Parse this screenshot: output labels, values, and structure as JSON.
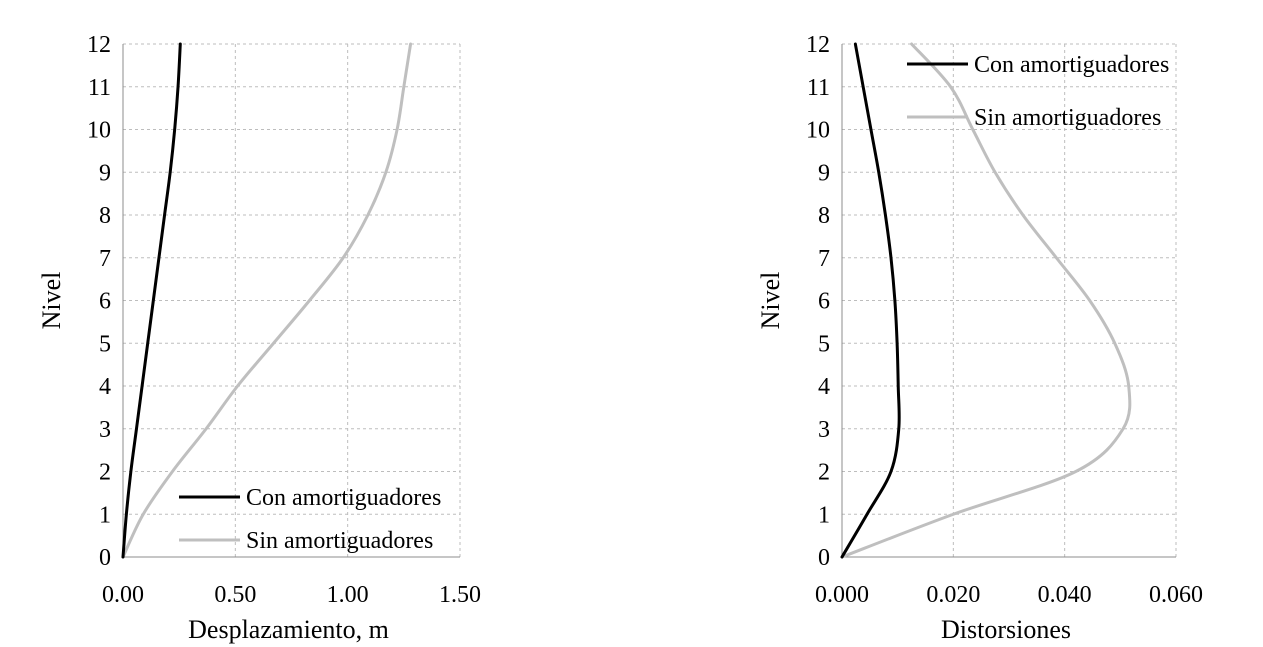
{
  "chart_data": [
    {
      "type": "line",
      "title": "",
      "xlabel": "Desplazamiento, m",
      "ylabel": "Nivel",
      "xlim": [
        0,
        1.5
      ],
      "ylim": [
        0,
        12
      ],
      "x_ticks": [
        "0.00",
        "0.50",
        "1.00",
        "1.50"
      ],
      "y_ticks": [
        "0",
        "1",
        "2",
        "3",
        "4",
        "5",
        "6",
        "7",
        "8",
        "9",
        "10",
        "11",
        "12"
      ],
      "grid": true,
      "legend_position": "bottom-right",
      "series": [
        {
          "name": "Con amortiguadores",
          "color": "#000000",
          "x": [
            0.0,
            0.015,
            0.035,
            0.06,
            0.085,
            0.11,
            0.135,
            0.16,
            0.185,
            0.21,
            0.23,
            0.245,
            0.255
          ],
          "y": [
            0,
            1,
            2,
            3,
            4,
            5,
            6,
            7,
            8,
            9,
            10,
            11,
            12
          ]
        },
        {
          "name": "Sin amortiguadores",
          "color": "#bfbfbf",
          "x": [
            0.0,
            0.09,
            0.22,
            0.37,
            0.51,
            0.67,
            0.83,
            0.98,
            1.09,
            1.17,
            1.22,
            1.25,
            1.28
          ],
          "y": [
            0,
            1,
            2,
            3,
            4,
            5,
            6,
            7,
            8,
            9,
            10,
            11,
            12
          ]
        }
      ]
    },
    {
      "type": "line",
      "title": "",
      "xlabel": "Distorsiones",
      "ylabel": "Nivel",
      "xlim": [
        0,
        0.06
      ],
      "ylim": [
        0,
        12
      ],
      "x_ticks": [
        "0.000",
        "0.020",
        "0.040",
        "0.060"
      ],
      "y_ticks": [
        "0",
        "1",
        "2",
        "3",
        "4",
        "5",
        "6",
        "7",
        "8",
        "9",
        "10",
        "11",
        "12"
      ],
      "grid": true,
      "legend_position": "top-right",
      "series": [
        {
          "name": "Con amortiguadores",
          "color": "#000000",
          "x": [
            0.0,
            0.0045,
            0.0088,
            0.0102,
            0.0101,
            0.0099,
            0.0095,
            0.0088,
            0.0078,
            0.0066,
            0.0052,
            0.0038,
            0.0024
          ],
          "y": [
            0,
            1,
            2,
            3,
            4,
            5,
            6,
            7,
            8,
            9,
            10,
            11,
            12
          ]
        },
        {
          "name": "Sin amortiguadores",
          "color": "#bfbfbf",
          "x": [
            0.0,
            0.02,
            0.042,
            0.0505,
            0.0515,
            0.049,
            0.0445,
            0.0385,
            0.0325,
            0.0275,
            0.0235,
            0.0195,
            0.0125
          ],
          "y": [
            0,
            1,
            2,
            3,
            4,
            5,
            6,
            7,
            8,
            9,
            10,
            11,
            12
          ]
        }
      ]
    }
  ]
}
